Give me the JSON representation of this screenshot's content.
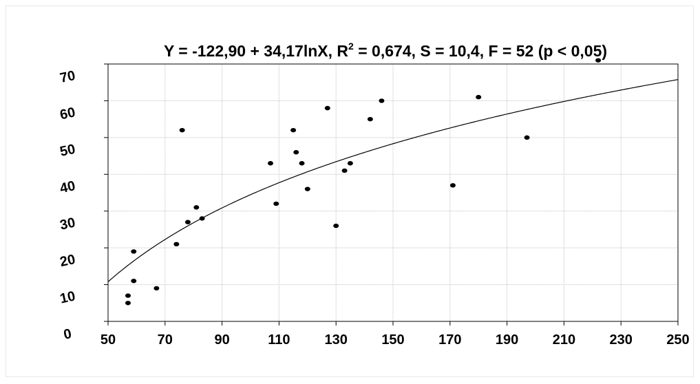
{
  "chart_data": {
    "type": "scatter",
    "title": {
      "part1": "Y = -122,90 + 34,17lnX, R",
      "sup": "2",
      "part2": " = 0,674, S = 10,4, F = 52 (p < 0,05)"
    },
    "xlabel": "",
    "ylabel": "",
    "xlim": [
      50,
      250
    ],
    "ylim": [
      0,
      70
    ],
    "x_ticks": [
      "50",
      "70",
      "90",
      "110",
      "130",
      "150",
      "170",
      "190",
      "210",
      "230",
      "250"
    ],
    "y_ticks": [
      "0",
      "10",
      "20",
      "30",
      "40",
      "50",
      "60",
      "70"
    ],
    "grid": true,
    "fit": {
      "type": "log",
      "a": -122.9,
      "b": 34.17
    },
    "points": [
      {
        "x": 57,
        "y": 5
      },
      {
        "x": 57,
        "y": 7
      },
      {
        "x": 59,
        "y": 11
      },
      {
        "x": 59,
        "y": 19
      },
      {
        "x": 67,
        "y": 9
      },
      {
        "x": 74,
        "y": 21
      },
      {
        "x": 76,
        "y": 52
      },
      {
        "x": 78,
        "y": 27
      },
      {
        "x": 81,
        "y": 31
      },
      {
        "x": 83,
        "y": 28
      },
      {
        "x": 107,
        "y": 43
      },
      {
        "x": 109,
        "y": 32
      },
      {
        "x": 115,
        "y": 52
      },
      {
        "x": 116,
        "y": 46
      },
      {
        "x": 118,
        "y": 43
      },
      {
        "x": 120,
        "y": 36
      },
      {
        "x": 127,
        "y": 58
      },
      {
        "x": 130,
        "y": 26
      },
      {
        "x": 133,
        "y": 41
      },
      {
        "x": 135,
        "y": 43
      },
      {
        "x": 142,
        "y": 55
      },
      {
        "x": 146,
        "y": 60
      },
      {
        "x": 171,
        "y": 37
      },
      {
        "x": 180,
        "y": 61
      },
      {
        "x": 197,
        "y": 50
      },
      {
        "x": 222,
        "y": 71
      }
    ]
  }
}
